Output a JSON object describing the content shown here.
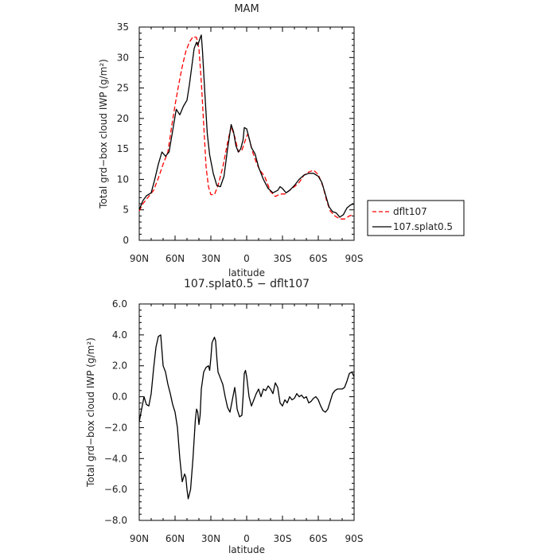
{
  "chart_data": [
    {
      "type": "line",
      "title": "MAM",
      "xlabel": "latitude",
      "ylabel": "Total grd−box cloud IWP (g/m²)",
      "ylim": [
        0,
        35
      ],
      "xlim": [
        90,
        -90
      ],
      "x_ticks": [
        90,
        60,
        30,
        0,
        -30,
        -60,
        -90
      ],
      "x_tick_labels": [
        "90N",
        "60N",
        "30N",
        "0",
        "30S",
        "60S",
        "90S"
      ],
      "y_ticks": [
        0,
        5,
        10,
        15,
        20,
        25,
        30,
        35
      ],
      "y_tick_labels": [
        "0",
        "5",
        "10",
        "15",
        "20",
        "25",
        "30",
        "35"
      ],
      "legend_position": "right",
      "grid": false,
      "series": [
        {
          "name": "dflt107",
          "color": "#ff0000",
          "dash": true,
          "points": [
            [
              90,
              4.8
            ],
            [
              87,
              6.0
            ],
            [
              82,
              7.2
            ],
            [
              78,
              8.2
            ],
            [
              74,
              10.2
            ],
            [
              70,
              12.5
            ],
            [
              66,
              14.5
            ],
            [
              63,
              18.5
            ],
            [
              60,
              22.2
            ],
            [
              57,
              25.5
            ],
            [
              54,
              28.5
            ],
            [
              51,
              31.0
            ],
            [
              48,
              32.5
            ],
            [
              45,
              33.4
            ],
            [
              42,
              33.3
            ],
            [
              40,
              31.5
            ],
            [
              38,
              26.0
            ],
            [
              36,
              19.0
            ],
            [
              34,
              12.0
            ],
            [
              32,
              8.8
            ],
            [
              30,
              7.5
            ],
            [
              27,
              7.5
            ],
            [
              24,
              9.0
            ],
            [
              20,
              12.0
            ],
            [
              16,
              16.0
            ],
            [
              13,
              18.7
            ],
            [
              10,
              17.0
            ],
            [
              7,
              14.5
            ],
            [
              4,
              14.8
            ],
            [
              1,
              16.5
            ],
            [
              -1,
              17.5
            ],
            [
              -3,
              16.0
            ],
            [
              -5,
              14.5
            ],
            [
              -8,
              12.8
            ],
            [
              -11,
              11.5
            ],
            [
              -15,
              10.5
            ],
            [
              -20,
              8.0
            ],
            [
              -24,
              7.2
            ],
            [
              -28,
              7.6
            ],
            [
              -32,
              7.6
            ],
            [
              -36,
              8.2
            ],
            [
              -40,
              8.8
            ],
            [
              -44,
              9.5
            ],
            [
              -48,
              10.7
            ],
            [
              -52,
              11.2
            ],
            [
              -56,
              11.5
            ],
            [
              -60,
              10.8
            ],
            [
              -64,
              8.8
            ],
            [
              -67,
              6.5
            ],
            [
              -70,
              4.8
            ],
            [
              -74,
              4.0
            ],
            [
              -78,
              3.5
            ],
            [
              -82,
              3.5
            ],
            [
              -86,
              4.0
            ],
            [
              -90,
              4.3
            ]
          ]
        },
        {
          "name": "107.splat0.5",
          "color": "#000000",
          "dash": false,
          "points": [
            [
              90,
              5.0
            ],
            [
              87,
              6.5
            ],
            [
              84,
              7.3
            ],
            [
              80,
              7.8
            ],
            [
              77,
              10.0
            ],
            [
              74,
              12.5
            ],
            [
              71,
              14.5
            ],
            [
              68,
              13.8
            ],
            [
              65,
              14.5
            ],
            [
              62,
              18.0
            ],
            [
              59,
              21.5
            ],
            [
              56,
              20.6
            ],
            [
              53,
              22.0
            ],
            [
              50,
              23.0
            ],
            [
              48,
              25.5
            ],
            [
              46,
              28.5
            ],
            [
              44,
              31.5
            ],
            [
              42,
              32.5
            ],
            [
              41,
              32.0
            ],
            [
              39,
              33.2
            ],
            [
              38,
              33.7
            ],
            [
              37,
              31.0
            ],
            [
              35,
              24.0
            ],
            [
              33,
              17.5
            ],
            [
              31,
              14.0
            ],
            [
              28,
              11.0
            ],
            [
              25,
              9.0
            ],
            [
              22,
              8.8
            ],
            [
              19,
              10.5
            ],
            [
              16,
              15.0
            ],
            [
              13,
              19.0
            ],
            [
              11,
              17.8
            ],
            [
              9,
              15.5
            ],
            [
              7,
              14.5
            ],
            [
              5,
              15.0
            ],
            [
              3,
              16.5
            ],
            [
              2,
              18.5
            ],
            [
              0,
              18.3
            ],
            [
              -2,
              16.8
            ],
            [
              -4,
              15.2
            ],
            [
              -7,
              14.2
            ],
            [
              -10,
              12.0
            ],
            [
              -14,
              10.0
            ],
            [
              -18,
              8.5
            ],
            [
              -22,
              7.8
            ],
            [
              -26,
              8.2
            ],
            [
              -28,
              8.8
            ],
            [
              -30,
              8.5
            ],
            [
              -33,
              7.8
            ],
            [
              -36,
              8.2
            ],
            [
              -40,
              9.0
            ],
            [
              -44,
              10.0
            ],
            [
              -48,
              10.7
            ],
            [
              -52,
              11.0
            ],
            [
              -56,
              11.0
            ],
            [
              -60,
              10.5
            ],
            [
              -63,
              9.5
            ],
            [
              -66,
              7.5
            ],
            [
              -69,
              5.5
            ],
            [
              -72,
              4.7
            ],
            [
              -75,
              4.5
            ],
            [
              -78,
              3.8
            ],
            [
              -81,
              4.2
            ],
            [
              -84,
              5.3
            ],
            [
              -87,
              5.8
            ],
            [
              -90,
              6.0
            ]
          ]
        }
      ]
    },
    {
      "type": "line",
      "title": "107.splat0.5 − dflt107",
      "xlabel": "latitude",
      "ylabel": "Total grd−box cloud IWP (g/m²)",
      "ylim": [
        -8,
        6
      ],
      "xlim": [
        90,
        -90
      ],
      "x_ticks": [
        90,
        60,
        30,
        0,
        -30,
        -60,
        -90
      ],
      "x_tick_labels": [
        "90N",
        "60N",
        "30N",
        "0",
        "30S",
        "60S",
        "90S"
      ],
      "y_ticks": [
        -8,
        -6,
        -4,
        -2,
        0,
        2,
        4,
        6
      ],
      "y_tick_labels": [
        "−8.0",
        "−6.0",
        "−4.0",
        "−2.0",
        "0.0",
        "2.0",
        "4.0",
        "6.0"
      ],
      "grid": false,
      "series": [
        {
          "color": "#000000",
          "dash": false,
          "points": [
            [
              90,
              -1.6
            ],
            [
              88,
              -0.8
            ],
            [
              86,
              0.0
            ],
            [
              84,
              -0.5
            ],
            [
              82,
              -0.6
            ],
            [
              80,
              0.2
            ],
            [
              78,
              1.8
            ],
            [
              76,
              3.2
            ],
            [
              74,
              3.9
            ],
            [
              72,
              4.0
            ],
            [
              71,
              3.0
            ],
            [
              70,
              2.0
            ],
            [
              68,
              1.6
            ],
            [
              66,
              0.8
            ],
            [
              64,
              0.2
            ],
            [
              62,
              -0.5
            ],
            [
              60,
              -1.0
            ],
            [
              58,
              -2.0
            ],
            [
              56,
              -4.0
            ],
            [
              54,
              -5.5
            ],
            [
              52,
              -5.0
            ],
            [
              51,
              -5.2
            ],
            [
              50,
              -6.0
            ],
            [
              49,
              -6.6
            ],
            [
              47,
              -6.0
            ],
            [
              45,
              -4.0
            ],
            [
              43,
              -1.5
            ],
            [
              42,
              -0.8
            ],
            [
              41,
              -1.0
            ],
            [
              40,
              -1.8
            ],
            [
              39,
              -1.2
            ],
            [
              38,
              0.5
            ],
            [
              36,
              1.6
            ],
            [
              34,
              1.9
            ],
            [
              32,
              2.0
            ],
            [
              31,
              1.7
            ],
            [
              30,
              2.5
            ],
            [
              29,
              3.5
            ],
            [
              27,
              3.85
            ],
            [
              26,
              3.6
            ],
            [
              25,
              2.5
            ],
            [
              24,
              1.6
            ],
            [
              22,
              1.2
            ],
            [
              20,
              0.8
            ],
            [
              18,
              0.0
            ],
            [
              16,
              -0.7
            ],
            [
              14,
              -1.0
            ],
            [
              12,
              -0.2
            ],
            [
              10,
              0.6
            ],
            [
              9,
              0.0
            ],
            [
              8,
              -0.8
            ],
            [
              6,
              -1.3
            ],
            [
              4,
              -1.2
            ],
            [
              3,
              0.0
            ],
            [
              2,
              1.5
            ],
            [
              1,
              1.7
            ],
            [
              0,
              1.3
            ],
            [
              -2,
              0.0
            ],
            [
              -4,
              -0.6
            ],
            [
              -6,
              -0.2
            ],
            [
              -8,
              0.2
            ],
            [
              -10,
              0.5
            ],
            [
              -12,
              0.0
            ],
            [
              -14,
              0.5
            ],
            [
              -16,
              0.4
            ],
            [
              -18,
              0.7
            ],
            [
              -20,
              0.5
            ],
            [
              -22,
              0.2
            ],
            [
              -24,
              0.9
            ],
            [
              -26,
              0.6
            ],
            [
              -28,
              -0.4
            ],
            [
              -30,
              -0.6
            ],
            [
              -32,
              -0.2
            ],
            [
              -34,
              -0.4
            ],
            [
              -36,
              0.0
            ],
            [
              -38,
              -0.2
            ],
            [
              -40,
              -0.1
            ],
            [
              -42,
              0.2
            ],
            [
              -44,
              0.0
            ],
            [
              -46,
              0.1
            ],
            [
              -48,
              -0.1
            ],
            [
              -50,
              0.0
            ],
            [
              -52,
              -0.4
            ],
            [
              -54,
              -0.3
            ],
            [
              -56,
              -0.1
            ],
            [
              -58,
              0.0
            ],
            [
              -60,
              -0.2
            ],
            [
              -62,
              -0.6
            ],
            [
              -64,
              -0.9
            ],
            [
              -66,
              -1.0
            ],
            [
              -68,
              -0.8
            ],
            [
              -70,
              -0.3
            ],
            [
              -72,
              0.2
            ],
            [
              -74,
              0.4
            ],
            [
              -76,
              0.5
            ],
            [
              -78,
              0.5
            ],
            [
              -80,
              0.5
            ],
            [
              -82,
              0.6
            ],
            [
              -84,
              1.0
            ],
            [
              -86,
              1.5
            ],
            [
              -88,
              1.6
            ],
            [
              -90,
              1.3
            ]
          ]
        }
      ]
    }
  ]
}
